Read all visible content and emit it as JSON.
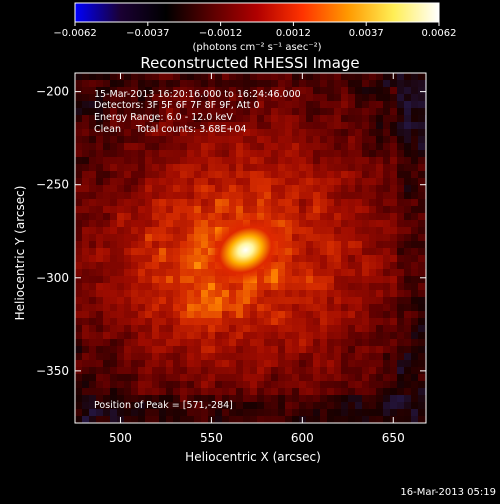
{
  "colorbar": {
    "ticks": [
      "-0.0062",
      "-0.0037",
      "-0.0012",
      "0.0012",
      "0.0037",
      "0.0062"
    ],
    "unit_label": "(photons cm⁻² s⁻¹ asec⁻²)",
    "gradient_stops": [
      "#0000ff",
      "#1a0033",
      "#000000",
      "#5a0000",
      "#b00000",
      "#ff3300",
      "#ff9900",
      "#ffee55",
      "#ffffff"
    ]
  },
  "chart_data": {
    "type": "heatmap",
    "title": "Reconstructed RHESSI Image",
    "xlabel": "Heliocentric X (arcsec)",
    "ylabel": "Heliocentric Y (arcsec)",
    "xlim": [
      475,
      668
    ],
    "ylim": [
      -378,
      -190
    ],
    "x_ticks": [
      500,
      550,
      600,
      650
    ],
    "y_ticks": [
      -200,
      -250,
      -300,
      -350
    ],
    "x_tick_labels": [
      "500",
      "550",
      "600",
      "650"
    ],
    "y_tick_labels": [
      "−200",
      "−250",
      "−300",
      "−350"
    ],
    "value_range": [
      -0.0062,
      0.0062
    ],
    "peak": {
      "x": 571,
      "y": -284,
      "value": 0.0062
    },
    "info_lines": [
      "15-Mar-2013 16:20:16.000 to 16:24:46.000",
      "Detectors: 3F 5F 6F 7F 8F 9F, Att 0",
      "Energy Range: 6.0 - 12.0 keV",
      "Clean     Total counts: 3.68E+04"
    ],
    "peak_label": "Position of Peak = [571,-284]"
  },
  "footer": {
    "timestamp": "16-Mar-2013 05:19"
  }
}
